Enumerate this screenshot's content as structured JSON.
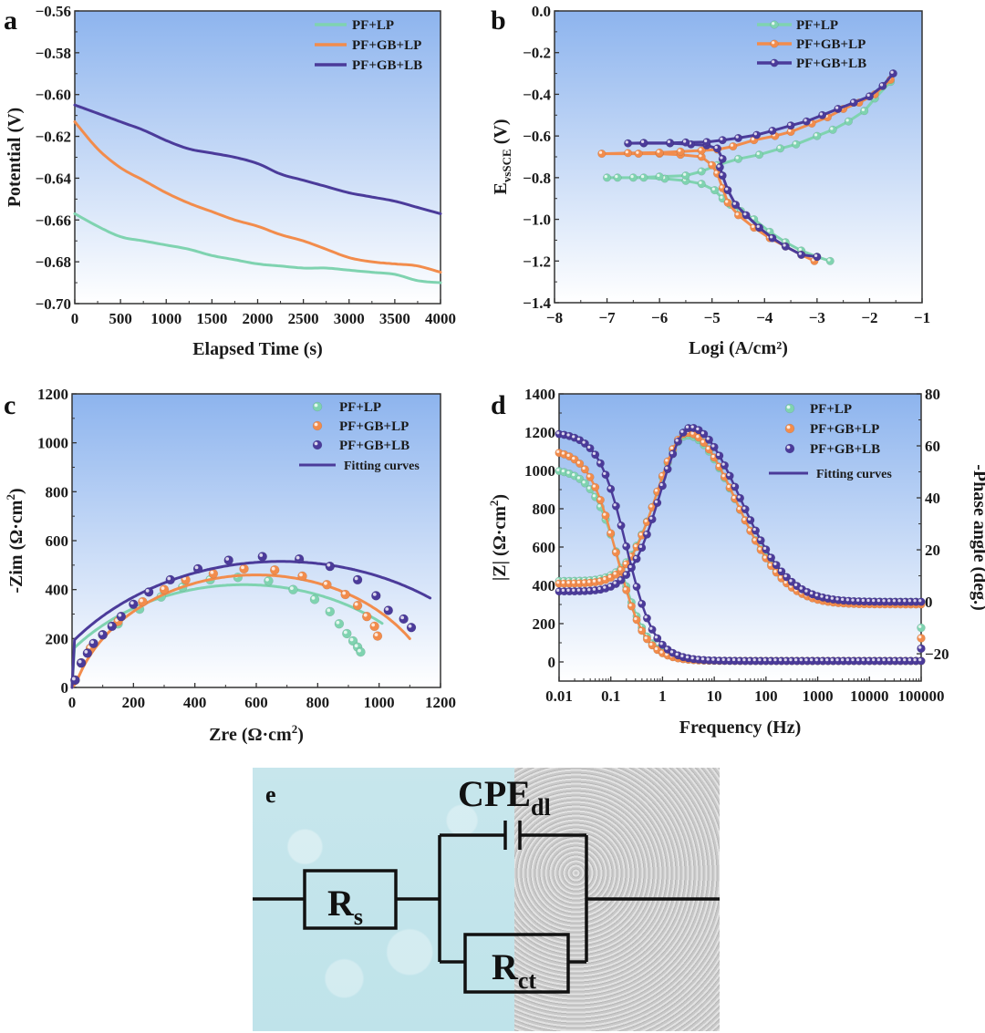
{
  "colors": {
    "pf_lp": "#7fd3b0",
    "pf_gb_lp": "#f28c4c",
    "pf_gb_lb": "#4b3b9a",
    "bg_top": "#8db4ee",
    "bg_bottom": "#ffffff",
    "axis": "#333333"
  },
  "chart_data": [
    {
      "panel": "a",
      "type": "line",
      "xlabel": "Elapsed Time (s)",
      "ylabel": "Potential (V)",
      "xlim": [
        0,
        4000
      ],
      "ylim": [
        -0.7,
        -0.56
      ],
      "xticks": [
        0,
        500,
        1000,
        1500,
        2000,
        2500,
        3000,
        3500,
        4000
      ],
      "yticks": [
        -0.56,
        -0.58,
        -0.6,
        -0.62,
        -0.64,
        -0.66,
        -0.68,
        -0.7
      ],
      "ytick_labels": [
        "−0.56",
        "−0.58",
        "−0.60",
        "−0.62",
        "−0.64",
        "−0.66",
        "−0.68",
        "−0.70"
      ],
      "legend_position": "top-right",
      "series": [
        {
          "name": "PF+LP",
          "x": [
            0,
            250,
            500,
            750,
            1000,
            1250,
            1500,
            1750,
            2000,
            2250,
            2500,
            2750,
            3000,
            3250,
            3500,
            3750,
            4000
          ],
          "y": [
            -0.657,
            -0.663,
            -0.668,
            -0.67,
            -0.672,
            -0.674,
            -0.677,
            -0.679,
            -0.681,
            -0.682,
            -0.683,
            -0.683,
            -0.684,
            -0.685,
            -0.686,
            -0.689,
            -0.69
          ]
        },
        {
          "name": "PF+GB+LP",
          "x": [
            0,
            250,
            500,
            750,
            1000,
            1250,
            1500,
            1750,
            2000,
            2250,
            2500,
            2750,
            3000,
            3250,
            3500,
            3750,
            4000
          ],
          "y": [
            -0.613,
            -0.626,
            -0.635,
            -0.641,
            -0.647,
            -0.652,
            -0.656,
            -0.66,
            -0.663,
            -0.667,
            -0.67,
            -0.674,
            -0.678,
            -0.68,
            -0.681,
            -0.682,
            -0.685
          ]
        },
        {
          "name": "PF+GB+LB",
          "x": [
            0,
            250,
            500,
            750,
            1000,
            1250,
            1500,
            1750,
            2000,
            2250,
            2500,
            2750,
            3000,
            3250,
            3500,
            3750,
            4000
          ],
          "y": [
            -0.605,
            -0.609,
            -0.613,
            -0.617,
            -0.622,
            -0.626,
            -0.628,
            -0.63,
            -0.633,
            -0.638,
            -0.641,
            -0.644,
            -0.647,
            -0.649,
            -0.651,
            -0.654,
            -0.657
          ]
        }
      ]
    },
    {
      "panel": "b",
      "type": "line",
      "xlabel": "Logi (A/cm²)",
      "ylabel": "EvsSCE (V)",
      "xlim": [
        -8,
        -1
      ],
      "ylim": [
        -1.4,
        0.0
      ],
      "xticks": [
        -8,
        -7,
        -6,
        -5,
        -4,
        -3,
        -2,
        -1
      ],
      "xtick_labels": [
        "−8",
        "−7",
        "−6",
        "−5",
        "−4",
        "−3",
        "−2",
        "−1"
      ],
      "yticks": [
        0.0,
        -0.2,
        -0.4,
        -0.6,
        -0.8,
        -1.0,
        -1.2,
        -1.4
      ],
      "ytick_labels": [
        "0.0",
        "−0.2",
        "−0.4",
        "−0.6",
        "−0.8",
        "−1.0",
        "−1.2",
        "−1.4"
      ],
      "legend_position": "top-right",
      "series": [
        {
          "name": "PF+LP",
          "x": [
            -2.75,
            -3.0,
            -3.3,
            -3.6,
            -3.9,
            -4.2,
            -4.45,
            -4.65,
            -4.8,
            -4.95,
            -5.2,
            -5.5,
            -5.9,
            -6.3,
            -6.8,
            -7.0,
            -6.5,
            -6.0,
            -5.5,
            -5.2,
            -4.9,
            -4.5,
            -4.1,
            -3.7,
            -3.4,
            -3.0,
            -2.7,
            -2.4,
            -2.1,
            -1.9,
            -1.6
          ],
          "y": [
            -1.2,
            -1.18,
            -1.15,
            -1.11,
            -1.06,
            -1.0,
            -0.96,
            -0.93,
            -0.9,
            -0.86,
            -0.83,
            -0.815,
            -0.805,
            -0.8,
            -0.8,
            -0.8,
            -0.8,
            -0.795,
            -0.79,
            -0.77,
            -0.74,
            -0.71,
            -0.69,
            -0.66,
            -0.64,
            -0.6,
            -0.57,
            -0.53,
            -0.48,
            -0.42,
            -0.34
          ]
        },
        {
          "name": "PF+GB+LP",
          "x": [
            -3.05,
            -3.3,
            -3.6,
            -3.9,
            -4.2,
            -4.5,
            -4.7,
            -4.8,
            -4.9,
            -5.0,
            -5.2,
            -5.6,
            -6.0,
            -6.4,
            -7.1,
            -6.6,
            -6.0,
            -5.6,
            -5.2,
            -4.9,
            -4.6,
            -4.2,
            -3.8,
            -3.5,
            -3.1,
            -2.8,
            -2.5,
            -2.2,
            -1.9,
            -1.6
          ],
          "y": [
            -1.2,
            -1.17,
            -1.13,
            -1.09,
            -1.04,
            -0.98,
            -0.92,
            -0.85,
            -0.78,
            -0.74,
            -0.7,
            -0.69,
            -0.685,
            -0.685,
            -0.685,
            -0.682,
            -0.68,
            -0.675,
            -0.67,
            -0.665,
            -0.65,
            -0.62,
            -0.6,
            -0.58,
            -0.54,
            -0.51,
            -0.47,
            -0.44,
            -0.4,
            -0.33
          ]
        },
        {
          "name": "PF+GB+LB",
          "x": [
            -3.0,
            -3.3,
            -3.6,
            -3.85,
            -4.1,
            -4.35,
            -4.55,
            -4.7,
            -4.8,
            -4.85,
            -4.8,
            -4.9,
            -5.1,
            -5.4,
            -5.8,
            -6.3,
            -6.6,
            -6.3,
            -5.8,
            -5.5,
            -5.1,
            -4.8,
            -4.5,
            -4.15,
            -3.85,
            -3.5,
            -3.2,
            -2.9,
            -2.6,
            -2.3,
            -2.0,
            -1.75,
            -1.55
          ],
          "y": [
            -1.18,
            -1.17,
            -1.13,
            -1.09,
            -1.04,
            -0.98,
            -0.93,
            -0.86,
            -0.79,
            -0.75,
            -0.71,
            -0.66,
            -0.645,
            -0.64,
            -0.635,
            -0.635,
            -0.635,
            -0.633,
            -0.633,
            -0.631,
            -0.629,
            -0.62,
            -0.61,
            -0.595,
            -0.575,
            -0.55,
            -0.53,
            -0.5,
            -0.47,
            -0.44,
            -0.41,
            -0.36,
            -0.3
          ]
        }
      ]
    },
    {
      "panel": "c",
      "type": "scatter",
      "xlabel": "Zre (Ω·cm²)",
      "ylabel": "-Zim (Ω·cm²)",
      "xlim": [
        0,
        1200
      ],
      "ylim": [
        0,
        1200
      ],
      "xticks": [
        0,
        200,
        400,
        600,
        800,
        1000,
        1200
      ],
      "yticks": [
        0,
        200,
        400,
        600,
        800,
        1000,
        1200
      ],
      "legend_position": "top-right",
      "series": [
        {
          "name": "PF+LP",
          "x": [
            10,
            30,
            60,
            100,
            150,
            220,
            290,
            360,
            450,
            540,
            640,
            720,
            790,
            840,
            870,
            895,
            915,
            930,
            940
          ],
          "y": [
            30,
            100,
            160,
            215,
            260,
            320,
            370,
            410,
            440,
            450,
            435,
            400,
            360,
            310,
            260,
            220,
            190,
            165,
            145
          ],
          "fit": {
            "center": [
              560,
              -300
            ],
            "radius": 720,
            "xrange": [
              8,
              1010
            ]
          }
        },
        {
          "name": "PF+GB+LP",
          "x": [
            10,
            30,
            60,
            100,
            150,
            230,
            300,
            370,
            460,
            560,
            660,
            750,
            830,
            890,
            930,
            960,
            985,
            995
          ],
          "y": [
            30,
            100,
            160,
            215,
            270,
            350,
            400,
            440,
            465,
            485,
            480,
            455,
            420,
            380,
            335,
            290,
            250,
            210
          ],
          "fit": {
            "center": [
              600,
              -150
            ],
            "radius": 610,
            "xrange": [
              8,
              1100
            ]
          }
        },
        {
          "name": "PF+GB+LB",
          "x": [
            10,
            30,
            50,
            70,
            100,
            130,
            160,
            200,
            250,
            320,
            410,
            510,
            620,
            740,
            840,
            930,
            990,
            1030,
            1080,
            1105
          ],
          "y": [
            30,
            100,
            140,
            180,
            215,
            250,
            290,
            340,
            390,
            440,
            485,
            520,
            535,
            525,
            495,
            440,
            375,
            315,
            280,
            245
          ],
          "fit": {
            "center": [
              680,
              -350
            ],
            "radius": 865,
            "xrange": [
              8,
              1170
            ]
          }
        }
      ],
      "fit_legend": "Fitting curves"
    },
    {
      "panel": "d",
      "type": "scatter",
      "xlabel": "Frequency (Hz)",
      "ylabel": "|Z| (Ω·cm²)",
      "ylabel_right": "-Phase angle (deg.)",
      "xscale": "log",
      "xlim": [
        0.01,
        100000
      ],
      "ylim": [
        -100,
        1400
      ],
      "ylim_right": [
        -30.5,
        80
      ],
      "xticks": [
        0.01,
        0.1,
        1,
        10,
        100,
        1000,
        10000,
        100000
      ],
      "xtick_labels": [
        "0.01",
        "0.1",
        "1",
        "10",
        "100",
        "1000",
        "10000",
        "100000"
      ],
      "yticks": [
        0,
        200,
        400,
        600,
        800,
        1000,
        1200,
        1400
      ],
      "yticks_right": [
        -20,
        0,
        20,
        40,
        60,
        80
      ],
      "yticks_right_labels": [
        "−20",
        "0",
        "20",
        "40",
        "60",
        "80"
      ],
      "legend_position": "top-right",
      "series": [
        {
          "name": "PF+LP",
          "z_low": 1010,
          "z_high": 5,
          "z_corner_hz": 0.15,
          "phase_peak": 64,
          "phase_peak_hz": 3,
          "phase_low": 8,
          "phase_high": 0,
          "phase_spike": -10
        },
        {
          "name": "PF+GB+LP",
          "z_low": 1110,
          "z_high": 5,
          "z_corner_hz": 0.13,
          "phase_peak": 65,
          "phase_peak_hz": 3,
          "phase_low": 7,
          "phase_high": -1,
          "phase_spike": -14
        },
        {
          "name": "PF+GB+LB",
          "z_low": 1200,
          "z_high": 5,
          "z_corner_hz": 0.2,
          "phase_peak": 67,
          "phase_peak_hz": 3.5,
          "phase_low": 4,
          "phase_high": 0,
          "phase_spike": -18
        }
      ],
      "fit_legend": "Fitting curves"
    }
  ],
  "panels": {
    "a": "a",
    "b": "b",
    "c": "c",
    "d": "d",
    "e": "e"
  },
  "circuit": {
    "title": "e",
    "rs_main": "R",
    "rs_sub": "s",
    "cpe_main": "CPE",
    "cpe_sub": "dl",
    "rct_main": "R",
    "rct_sub": "ct"
  }
}
